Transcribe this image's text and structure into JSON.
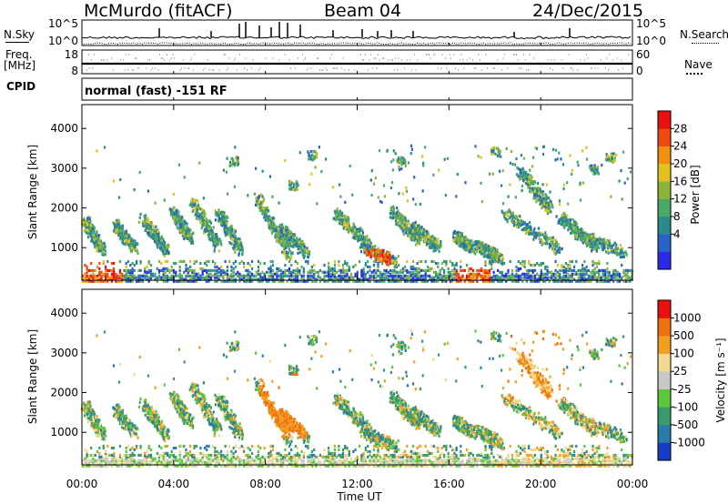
{
  "header": {
    "station": "McMurdo (fitACF)",
    "beam": "Beam 04",
    "date": "24/Dec/2015"
  },
  "panels_top": {
    "nsky_label": "N.Sky",
    "nsearch_label": "N.Search",
    "nsky_ticks": [
      "10^5",
      "10^0"
    ],
    "nsearch_ticks": [
      "10^5",
      "10^0"
    ],
    "freq_label_line1": "Freq.",
    "freq_label_line2": "[MHz]",
    "freq_ticks": [
      "18",
      "8"
    ],
    "nave_label": "Nave",
    "nave_ticks": [
      "60",
      "0"
    ],
    "cpid_label": "CPID",
    "cpid_text": "normal (fast) -151 RF"
  },
  "axes": {
    "ylabel": "Slant Range [km]",
    "xlabel": "Time UT",
    "y_ticks": [
      "1000",
      "2000",
      "3000",
      "4000"
    ],
    "y_tick_values": [
      1000,
      2000,
      3000,
      4000
    ],
    "x_ticks": [
      "00:00",
      "04:00",
      "08:00",
      "12:00",
      "16:00",
      "20:00",
      "00:00"
    ],
    "x_tick_hours": [
      0,
      4,
      8,
      12,
      16,
      20,
      24
    ]
  },
  "chart_data": [
    {
      "type": "heatmap",
      "variable": "power",
      "ylabel": "Slant Range [km]",
      "colorbar_label": "Power [dB]",
      "colorbar_ticks": [
        "28",
        "24",
        "20",
        "16",
        "12",
        "8",
        "4"
      ],
      "colorbar_colors": [
        "#2a2ae8",
        "#2a62c8",
        "#2a8c8a",
        "#4aa86a",
        "#8ab43a",
        "#e2c020",
        "#f09010",
        "#f04a10",
        "#e81010"
      ],
      "xlim_hours": [
        0,
        24
      ],
      "ylim_km": [
        180,
        4600
      ]
    },
    {
      "type": "heatmap",
      "variable": "velocity",
      "ylabel": "Slant Range [km]",
      "colorbar_label": "Velocity [m s⁻¹]",
      "colorbar_ticks": [
        "1000",
        "500",
        "100",
        "25",
        "-25",
        "-100",
        "-500",
        "-1000"
      ],
      "colorbar_colors": [
        "#1a3ac8",
        "#2a7aaa",
        "#3a9a6a",
        "#5ac83a",
        "#c8c8c8",
        "#f0d890",
        "#f0a020",
        "#f07010",
        "#e81010"
      ],
      "xlim_hours": [
        0,
        24
      ],
      "ylim_km": [
        180,
        4600
      ]
    }
  ]
}
